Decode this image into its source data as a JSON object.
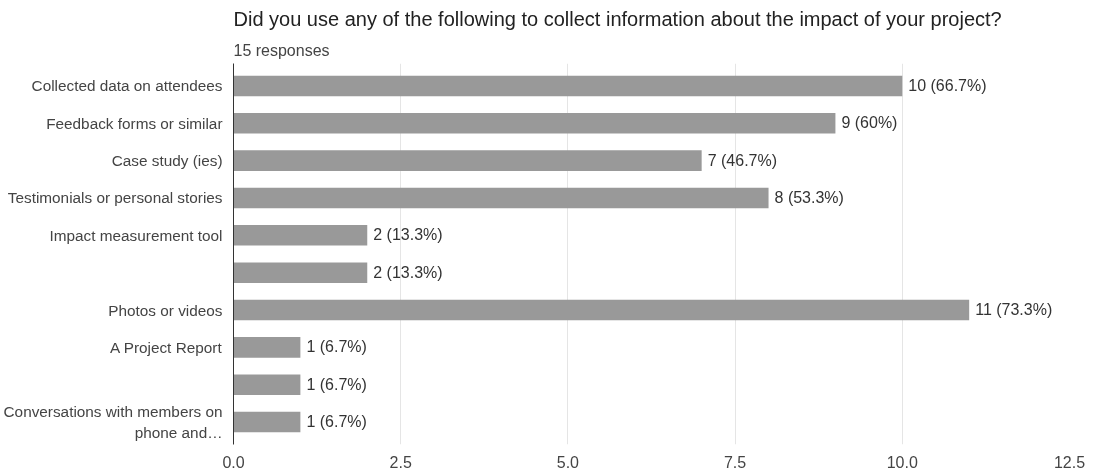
{
  "chart_data": {
    "type": "bar",
    "orientation": "horizontal",
    "title": "Did you use any of the following to collect information about the impact of your project?",
    "subtitle": "15 responses",
    "categories": [
      "Collected data on attendees",
      "Feedback forms or similar",
      "Case study (ies)",
      "Testimonials or personal stories",
      "Impact measurement tool",
      null,
      "Photos or videos",
      "A Project Report",
      null,
      "Conversations with members on phone and…"
    ],
    "values": [
      10,
      9,
      7,
      8,
      2,
      2,
      11,
      1,
      1,
      1
    ],
    "value_labels": [
      "10 (66.7%)",
      "9 (60%)",
      "7 (46.7%)",
      "8 (53.3%)",
      "2 (13.3%)",
      "2 (13.3%)",
      "11 (73.3%)",
      "1 (6.7%)",
      "1 (6.7%)",
      "1 (6.7%)"
    ],
    "color": "#999999",
    "xlim": [
      0,
      12.5
    ],
    "xticks": [
      {
        "value": 0,
        "label": "0.0"
      },
      2.5,
      {
        "value": 5,
        "label": "5.0"
      },
      7.5,
      {
        "value": 10,
        "label": "10.0"
      },
      12.5
    ],
    "grid": "x"
  }
}
